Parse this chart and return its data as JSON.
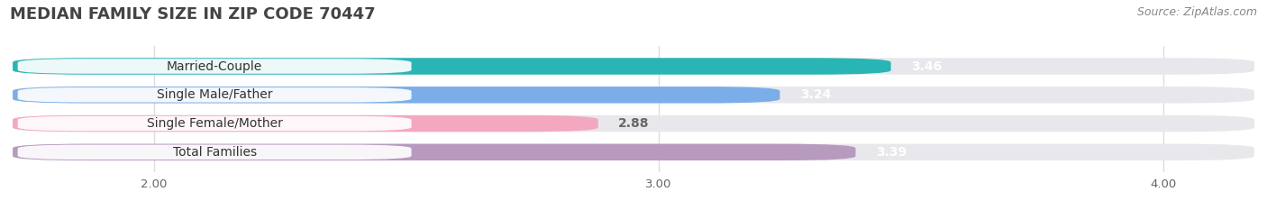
{
  "title": "MEDIAN FAMILY SIZE IN ZIP CODE 70447",
  "source": "Source: ZipAtlas.com",
  "categories": [
    "Married-Couple",
    "Single Male/Father",
    "Single Female/Mother",
    "Total Families"
  ],
  "values": [
    3.46,
    3.24,
    2.88,
    3.39
  ],
  "bar_colors": [
    "#2ab5b5",
    "#7baee8",
    "#f4a8c0",
    "#b89abf"
  ],
  "value_colors": [
    "white",
    "white",
    "#666666",
    "white"
  ],
  "xlim": [
    1.72,
    4.18
  ],
  "xticks": [
    2.0,
    3.0,
    4.0
  ],
  "xtick_labels": [
    "2.00",
    "3.00",
    "4.00"
  ],
  "bar_height": 0.58,
  "background_color": "#ffffff",
  "bar_bg_color": "#e8e8ec",
  "title_fontsize": 13,
  "source_fontsize": 9,
  "label_fontsize": 10,
  "value_fontsize": 10,
  "label_box_color": "#ffffff",
  "grid_color": "#dddddd"
}
